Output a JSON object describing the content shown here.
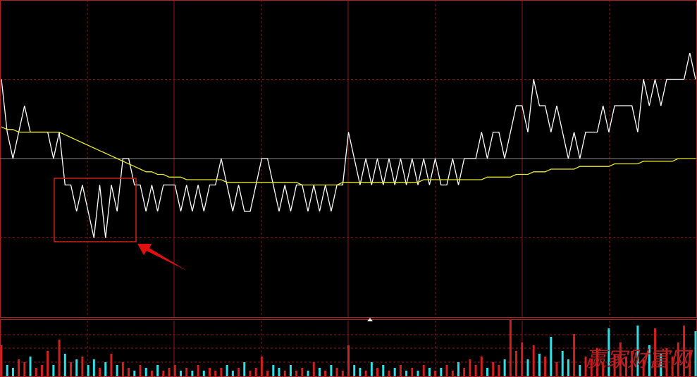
{
  "chart_data": {
    "type": "line",
    "watermark": "赢家财富网",
    "ylim": [
      -6,
      6
    ],
    "yticks": [
      -3,
      0,
      3
    ],
    "grid": true,
    "series": [
      {
        "name": "price",
        "color": "#ffffff",
        "values": [
          3,
          1,
          0,
          1,
          2,
          1,
          1,
          1,
          1,
          0,
          1,
          -1,
          -1,
          -2,
          -1,
          -2,
          -3,
          -1,
          -3,
          -1,
          -2,
          0,
          0,
          -1,
          -1,
          -2,
          -1,
          -2,
          -1,
          -1,
          -1,
          -2,
          -1,
          -2,
          -1,
          -2,
          -1,
          -1,
          0,
          -1,
          -2,
          -1,
          -2,
          -2,
          -1,
          0,
          0,
          -1,
          -2,
          -1,
          -2,
          -1,
          -1,
          -2,
          -1,
          -2,
          -1,
          -2,
          -1,
          -1,
          1,
          0,
          -1,
          0,
          -1,
          0,
          -1,
          0,
          -1,
          0,
          -1,
          0,
          -1,
          0,
          -1,
          0,
          -1,
          -1,
          0,
          -1,
          0,
          0,
          0,
          1,
          0,
          1,
          1,
          0,
          1,
          2,
          2,
          1,
          3,
          2,
          2,
          1,
          2,
          1,
          0,
          1,
          0,
          1,
          1,
          1,
          2,
          1,
          2,
          2,
          2,
          2,
          1,
          3,
          2,
          3,
          2,
          3,
          3,
          3,
          3,
          4,
          3
        ]
      },
      {
        "name": "average",
        "color": "#e8e830",
        "values": [
          1.2,
          1.1,
          1.1,
          1.0,
          1.0,
          1.0,
          1.0,
          1.0,
          1.0,
          1.0,
          1.0,
          0.9,
          0.8,
          0.7,
          0.6,
          0.5,
          0.4,
          0.3,
          0.2,
          0.1,
          0.0,
          -0.1,
          -0.2,
          -0.3,
          -0.4,
          -0.5,
          -0.5,
          -0.6,
          -0.6,
          -0.7,
          -0.7,
          -0.7,
          -0.8,
          -0.8,
          -0.8,
          -0.8,
          -0.8,
          -0.8,
          -0.8,
          -0.9,
          -0.9,
          -0.9,
          -0.9,
          -0.9,
          -0.9,
          -0.9,
          -0.9,
          -0.9,
          -0.9,
          -0.9,
          -0.9,
          -0.9,
          -1.0,
          -1.0,
          -1.0,
          -1.0,
          -1.0,
          -1.0,
          -1.0,
          -0.9,
          -0.9,
          -0.9,
          -0.9,
          -0.9,
          -0.9,
          -0.9,
          -0.9,
          -0.9,
          -0.9,
          -0.9,
          -0.9,
          -0.9,
          -0.9,
          -0.8,
          -0.8,
          -0.8,
          -0.8,
          -0.8,
          -0.8,
          -0.8,
          -0.8,
          -0.8,
          -0.8,
          -0.8,
          -0.7,
          -0.7,
          -0.7,
          -0.7,
          -0.7,
          -0.6,
          -0.6,
          -0.6,
          -0.5,
          -0.5,
          -0.5,
          -0.4,
          -0.4,
          -0.4,
          -0.4,
          -0.4,
          -0.3,
          -0.3,
          -0.3,
          -0.3,
          -0.3,
          -0.3,
          -0.2,
          -0.2,
          -0.2,
          -0.2,
          -0.2,
          -0.1,
          -0.1,
          -0.1,
          -0.1,
          -0.1,
          -0.1,
          0.0,
          0.0,
          0.0,
          0.0
        ]
      }
    ],
    "volume": {
      "up_color": "#d02020",
      "down_color": "#30e0e8",
      "ylim": [
        0,
        100
      ],
      "values": [
        55,
        20,
        15,
        30,
        25,
        35,
        15,
        20,
        45,
        20,
        65,
        40,
        25,
        30,
        35,
        20,
        30,
        15,
        25,
        40,
        20,
        25,
        15,
        10,
        20,
        15,
        10,
        20,
        10,
        15,
        20,
        10,
        15,
        10,
        20,
        10,
        15,
        10,
        15,
        20,
        10,
        15,
        25,
        10,
        15,
        35,
        10,
        20,
        15,
        10,
        20,
        10,
        15,
        10,
        25,
        15,
        10,
        20,
        15,
        10,
        55,
        20,
        15,
        10,
        25,
        15,
        20,
        10,
        15,
        20,
        10,
        15,
        10,
        20,
        15,
        10,
        15,
        20,
        10,
        25,
        15,
        30,
        20,
        35,
        15,
        25,
        20,
        30,
        100,
        45,
        60,
        30,
        55,
        40,
        35,
        70,
        25,
        45,
        30,
        75,
        20,
        35,
        30,
        50,
        25,
        85,
        40,
        60,
        35,
        45,
        90,
        30,
        55,
        85,
        40,
        50,
        35,
        60,
        90,
        45,
        80
      ]
    }
  }
}
